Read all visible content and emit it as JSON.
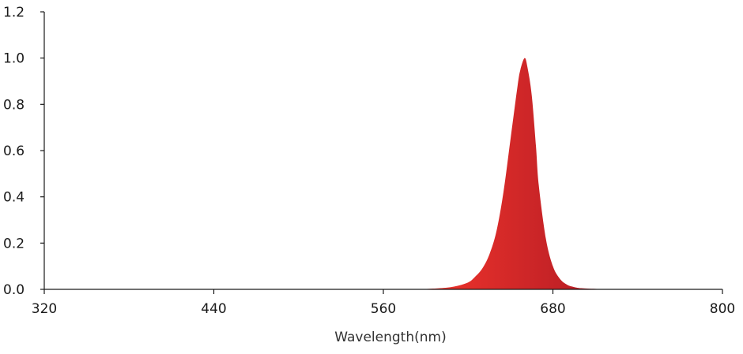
{
  "chart_data": {
    "type": "area",
    "title": "",
    "xlabel": "Wavelength(nm)",
    "ylabel": "",
    "xlim": [
      320,
      800
    ],
    "ylim": [
      0,
      1.2
    ],
    "x_ticks": [
      "320",
      "440",
      "560",
      "680",
      "800"
    ],
    "y_ticks": [
      "0.0",
      "0.2",
      "0.4",
      "0.6",
      "0.8",
      "1.0",
      "1.2"
    ],
    "grid": false,
    "legend": "none",
    "series": [
      {
        "color_start": "#f2352c",
        "color_end": "#b01a24",
        "x": [
          585,
          600,
          610,
          620,
          625,
          630,
          635,
          640,
          645,
          650,
          655,
          657,
          660,
          662,
          665,
          668,
          670,
          675,
          680,
          685,
          690,
          695,
          700,
          710,
          725
        ],
        "y": [
          0.0,
          0.005,
          0.012,
          0.03,
          0.055,
          0.09,
          0.15,
          0.25,
          0.42,
          0.65,
          0.88,
          0.95,
          1.0,
          0.96,
          0.84,
          0.62,
          0.45,
          0.22,
          0.1,
          0.045,
          0.02,
          0.01,
          0.005,
          0.002,
          0.0
        ]
      }
    ]
  }
}
